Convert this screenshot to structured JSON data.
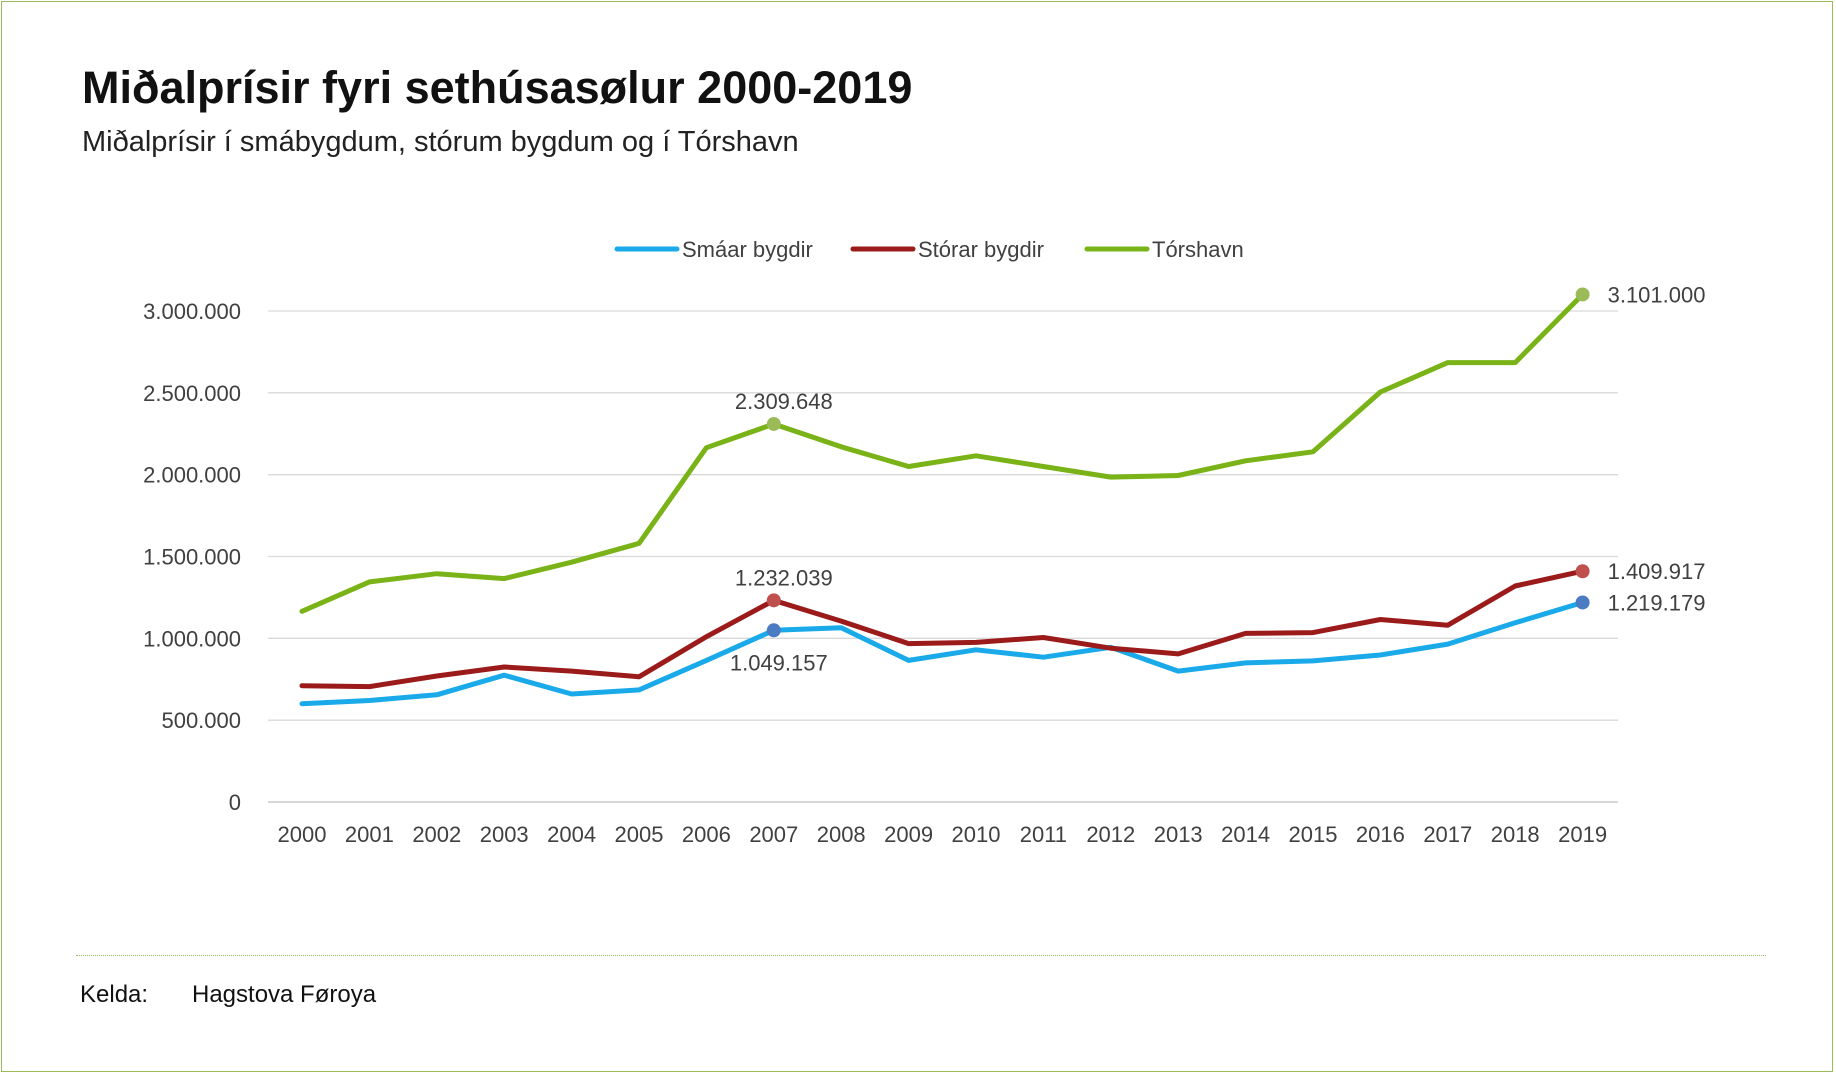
{
  "header": {
    "title": "Miðalprísir fyri sethúsasølur 2000-2019",
    "subtitle": "Miðalprísir í smábygdum, stórum bygdum og í Tórshavn"
  },
  "footer": {
    "source_label": "Kelda:",
    "source_value": "Hagstova Føroya"
  },
  "colors": {
    "smaar": "#1aaae9",
    "storar": "#9b1b1b",
    "torshavn": "#7ab317",
    "grid": "#d9d9d9",
    "axis_text": "#404040",
    "frame": "#9bbb59"
  },
  "chart_data": {
    "type": "line",
    "title": "Miðalprísir fyri sethúsasølur 2000-2019",
    "xlabel": "",
    "ylabel": "",
    "ylim": [
      0,
      3000000
    ],
    "yticks": [
      0,
      500000,
      1000000,
      1500000,
      2000000,
      2500000,
      3000000
    ],
    "ytick_labels": [
      "0",
      "500.000",
      "1.000.000",
      "1.500.000",
      "2.000.000",
      "2.500.000",
      "3.000.000"
    ],
    "legend_position": "top-center",
    "grid": true,
    "categories": [
      "2000",
      "2001",
      "2002",
      "2003",
      "2004",
      "2005",
      "2006",
      "2007",
      "2008",
      "2009",
      "2010",
      "2011",
      "2012",
      "2013",
      "2014",
      "2015",
      "2016",
      "2017",
      "2018",
      "2019"
    ],
    "series": [
      {
        "key": "smaar",
        "name": "Smáar bygdir",
        "color": "#1aaae9",
        "marker_color": "#4a7bc3",
        "values": [
          600000,
          620000,
          655000,
          775000,
          660000,
          685000,
          865000,
          1049157,
          1065000,
          865000,
          930000,
          885000,
          945000,
          800000,
          850000,
          862000,
          898000,
          965000,
          1095000,
          1219179
        ],
        "annotations": [
          {
            "index": 7,
            "label": "1.049.157",
            "placement": "below"
          },
          {
            "index": 19,
            "label": "1.219.179",
            "placement": "right"
          }
        ]
      },
      {
        "key": "storar",
        "name": "Stórar bygdir",
        "color": "#9b1b1b",
        "marker_color": "#c0504d",
        "values": [
          710000,
          705000,
          770000,
          825000,
          800000,
          765000,
          1010000,
          1232039,
          1105000,
          968000,
          975000,
          1005000,
          940000,
          905000,
          1030000,
          1035000,
          1115000,
          1080000,
          1320000,
          1409917
        ],
        "annotations": [
          {
            "index": 7,
            "label": "1.232.039",
            "placement": "above"
          },
          {
            "index": 19,
            "label": "1.409.917",
            "placement": "right"
          }
        ]
      },
      {
        "key": "torshavn",
        "name": "Tórshavn",
        "color": "#7ab317",
        "marker_color": "#9bbb59",
        "values": [
          1165000,
          1345000,
          1395000,
          1365000,
          1465000,
          1580000,
          2165000,
          2309648,
          2170000,
          2050000,
          2115000,
          2050000,
          1985000,
          1995000,
          2085000,
          2140000,
          2505000,
          2685000,
          2685000,
          3101000
        ],
        "annotations": [
          {
            "index": 7,
            "label": "2.309.648",
            "placement": "above"
          },
          {
            "index": 19,
            "label": "3.101.000",
            "placement": "right"
          }
        ]
      }
    ]
  }
}
